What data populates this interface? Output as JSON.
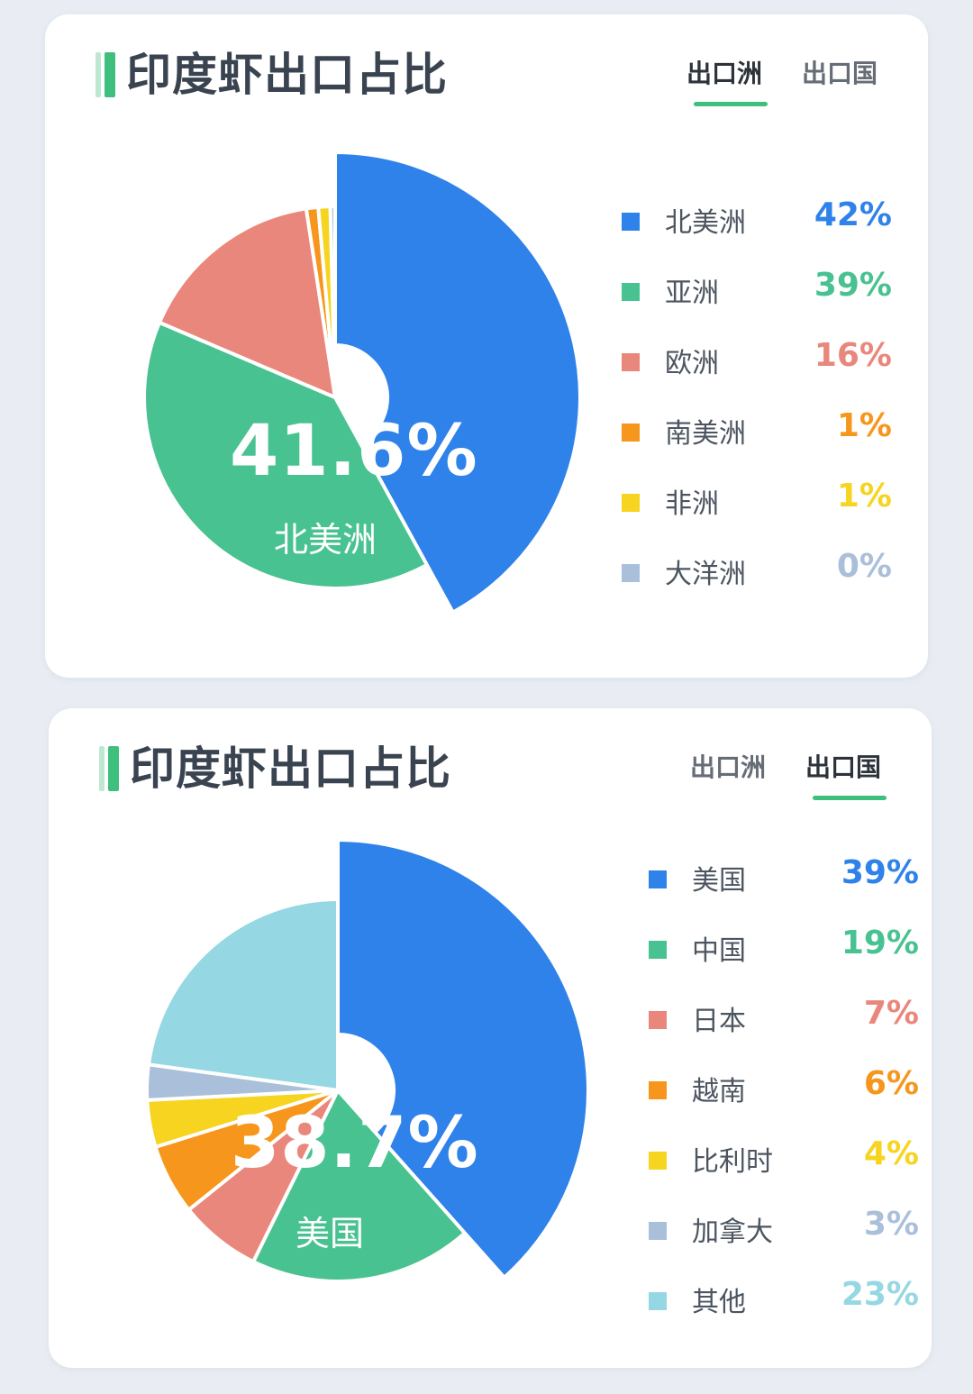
{
  "chart_data": [
    {
      "type": "pie",
      "title": "印度虾出口占比",
      "tabs": [
        {
          "label": "出口洲",
          "active": true
        },
        {
          "label": "出口国",
          "active": false
        }
      ],
      "center_value": "41.6%",
      "center_label": "北美洲",
      "slices": [
        {
          "name": "北美洲",
          "value": 41.6,
          "label": "42%",
          "color": "#2f82e9"
        },
        {
          "name": "亚洲",
          "value": 39,
          "label": "39%",
          "color": "#48c290"
        },
        {
          "name": "欧洲",
          "value": 16,
          "label": "16%",
          "color": "#ea877c"
        },
        {
          "name": "南美洲",
          "value": 1,
          "label": "1%",
          "color": "#f7961c"
        },
        {
          "name": "非洲",
          "value": 1,
          "label": "1%",
          "color": "#f6d41f"
        },
        {
          "name": "大洋洲",
          "value": 0.4,
          "label": "0%",
          "color": "#a9bfda"
        }
      ]
    },
    {
      "type": "pie",
      "title": "印度虾出口占比",
      "tabs": [
        {
          "label": "出口洲",
          "active": false
        },
        {
          "label": "出口国",
          "active": true
        }
      ],
      "center_value": "38.7%",
      "center_label": "美国",
      "slices": [
        {
          "name": "美国",
          "value": 38.7,
          "label": "39%",
          "color": "#2f82e9"
        },
        {
          "name": "中国",
          "value": 19,
          "label": "19%",
          "color": "#48c290"
        },
        {
          "name": "日本",
          "value": 7,
          "label": "7%",
          "color": "#ea877c"
        },
        {
          "name": "越南",
          "value": 6,
          "label": "6%",
          "color": "#f7961c"
        },
        {
          "name": "比利时",
          "value": 4,
          "label": "4%",
          "color": "#f6d41f"
        },
        {
          "name": "加拿大",
          "value": 3,
          "label": "3%",
          "color": "#a9bfda"
        },
        {
          "name": "其他",
          "value": 23,
          "label": "23%",
          "color": "#95d7e2"
        }
      ]
    }
  ]
}
